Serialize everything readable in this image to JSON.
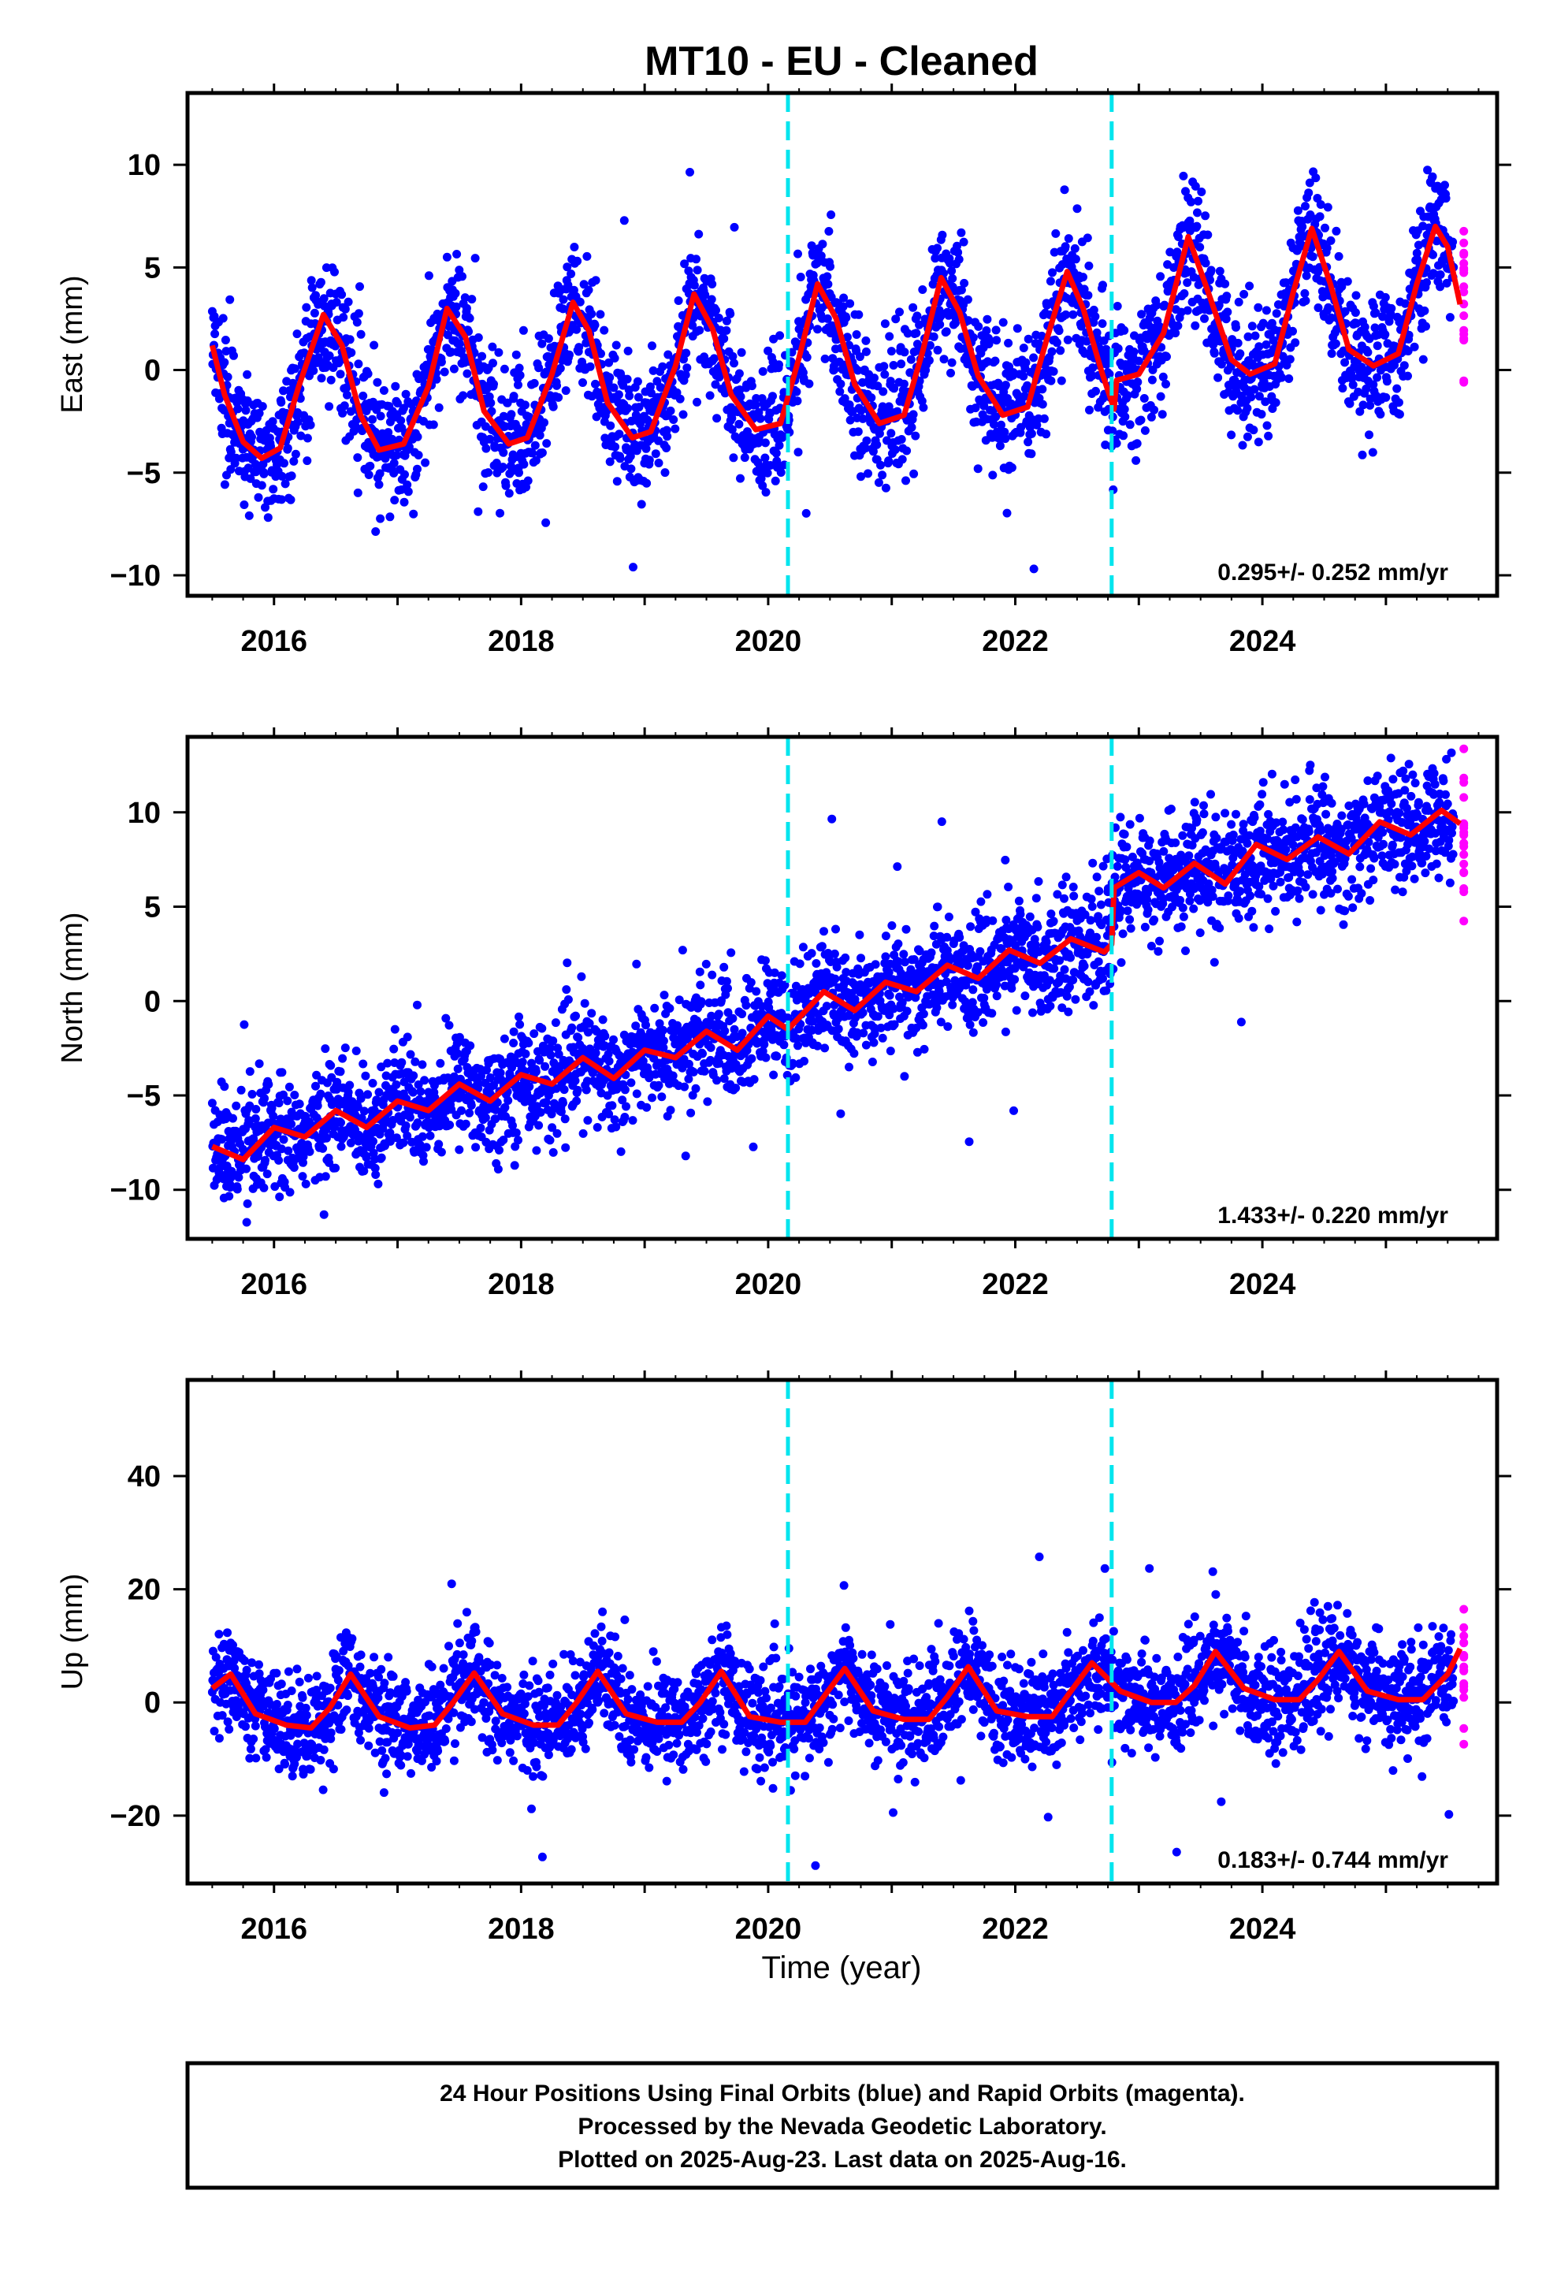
{
  "title": "MT10  - EU - Cleaned",
  "x_axis_label": "Time (year)",
  "colors": {
    "final_orbits": "#0000ff",
    "rapid_orbits": "#ff00ff",
    "model_fit": "#ff0000",
    "breaks": "#00e5ee",
    "frame": "#000000"
  },
  "footer": {
    "line1": "24 Hour Positions Using Final Orbits (blue) and Rapid Orbits (magenta).",
    "line2": "Processed by the Nevada Geodetic Laboratory.",
    "line3": "Plotted on 2025-Aug-23. Last data on 2025-Aug-16."
  },
  "chart_data": [
    {
      "type": "scatter",
      "ylabel": "East (mm)",
      "xlim": [
        2015.3,
        2025.9
      ],
      "ylim": [
        -11,
        13.5
      ],
      "xticks": [
        "2016",
        "2018",
        "2020",
        "2022",
        "2024"
      ],
      "yticks": [
        "−10",
        "−5",
        "0",
        "5",
        "10"
      ],
      "rate_label": "0.295+/- 0.252 mm/yr",
      "series": [
        {
          "name": "Final Orbits",
          "x_range": [
            2015.5,
            2025.55
          ]
        },
        {
          "name": "Rapid Orbits",
          "x_range": [
            2025.55,
            2025.62
          ]
        },
        {
          "name": "Model fit",
          "knots": [
            [
              2015.5,
              1.2
            ],
            [
              2015.6,
              -1.2
            ],
            [
              2015.75,
              -3.5
            ],
            [
              2015.9,
              -4.3
            ],
            [
              2016.05,
              -3.8
            ],
            [
              2016.2,
              -0.8
            ],
            [
              2016.4,
              2.7
            ],
            [
              2016.55,
              1.2
            ],
            [
              2016.7,
              -2.2
            ],
            [
              2016.85,
              -3.9
            ],
            [
              2017.05,
              -3.6
            ],
            [
              2017.25,
              -0.8
            ],
            [
              2017.4,
              3.0
            ],
            [
              2017.55,
              1.6
            ],
            [
              2017.7,
              -2.0
            ],
            [
              2017.9,
              -3.6
            ],
            [
              2018.05,
              -3.3
            ],
            [
              2018.25,
              -0.2
            ],
            [
              2018.42,
              3.3
            ],
            [
              2018.55,
              1.9
            ],
            [
              2018.7,
              -1.6
            ],
            [
              2018.9,
              -3.3
            ],
            [
              2019.05,
              -3.0
            ],
            [
              2019.25,
              0.2
            ],
            [
              2019.4,
              3.7
            ],
            [
              2019.55,
              2.0
            ],
            [
              2019.7,
              -1.2
            ],
            [
              2019.9,
              -2.9
            ],
            [
              2020.1,
              -2.6
            ],
            [
              2020.25,
              0.6
            ],
            [
              2020.4,
              4.2
            ],
            [
              2020.55,
              2.5
            ],
            [
              2020.7,
              -0.7
            ],
            [
              2020.9,
              -2.6
            ],
            [
              2021.1,
              -2.2
            ],
            [
              2021.25,
              0.9
            ],
            [
              2021.4,
              4.5
            ],
            [
              2021.55,
              2.8
            ],
            [
              2021.7,
              -0.3
            ],
            [
              2021.9,
              -2.2
            ],
            [
              2022.1,
              -1.8
            ],
            [
              2022.25,
              1.4
            ],
            [
              2022.42,
              4.8
            ],
            [
              2022.55,
              3.0
            ],
            [
              2022.7,
              -0.1
            ],
            [
              2022.8,
              -1.9
            ],
            [
              2022.82,
              -0.5
            ],
            [
              2023.0,
              -0.2
            ],
            [
              2023.2,
              1.8
            ],
            [
              2023.4,
              6.5
            ],
            [
              2023.55,
              4.0
            ],
            [
              2023.75,
              0.5
            ],
            [
              2023.9,
              -0.2
            ],
            [
              2024.1,
              0.3
            ],
            [
              2024.25,
              3.8
            ],
            [
              2024.4,
              6.9
            ],
            [
              2024.55,
              4.2
            ],
            [
              2024.7,
              1.0
            ],
            [
              2024.9,
              0.2
            ],
            [
              2025.1,
              0.8
            ],
            [
              2025.25,
              4.2
            ],
            [
              2025.4,
              7.0
            ],
            [
              2025.5,
              6.0
            ],
            [
              2025.6,
              3.2
            ]
          ]
        }
      ],
      "breaks_x": [
        2020.16,
        2022.78
      ]
    },
    {
      "type": "scatter",
      "ylabel": "North (mm)",
      "xlim": [
        2015.3,
        2025.9
      ],
      "ylim": [
        -12.6,
        14
      ],
      "xticks": [
        "2016",
        "2018",
        "2020",
        "2022",
        "2024"
      ],
      "yticks": [
        "−10",
        "−5",
        "0",
        "5",
        "10"
      ],
      "rate_label": "1.433+/- 0.220 mm/yr",
      "series": [
        {
          "name": "Final Orbits",
          "x_range": [
            2015.5,
            2025.55
          ]
        },
        {
          "name": "Rapid Orbits",
          "x_range": [
            2025.55,
            2025.62
          ]
        },
        {
          "name": "Model fit",
          "knots": [
            [
              2015.5,
              -7.7
            ],
            [
              2015.75,
              -8.4
            ],
            [
              2016.0,
              -6.7
            ],
            [
              2016.25,
              -7.2
            ],
            [
              2016.5,
              -5.8
            ],
            [
              2016.75,
              -6.7
            ],
            [
              2017.0,
              -5.3
            ],
            [
              2017.25,
              -5.8
            ],
            [
              2017.5,
              -4.4
            ],
            [
              2017.75,
              -5.3
            ],
            [
              2018.0,
              -3.9
            ],
            [
              2018.25,
              -4.4
            ],
            [
              2018.5,
              -3.0
            ],
            [
              2018.75,
              -4.1
            ],
            [
              2019.0,
              -2.6
            ],
            [
              2019.25,
              -3.0
            ],
            [
              2019.5,
              -1.6
            ],
            [
              2019.75,
              -2.6
            ],
            [
              2020.0,
              -0.8
            ],
            [
              2020.16,
              -1.5
            ],
            [
              2020.45,
              0.5
            ],
            [
              2020.7,
              -0.5
            ],
            [
              2020.95,
              1.0
            ],
            [
              2021.2,
              0.5
            ],
            [
              2021.45,
              1.9
            ],
            [
              2021.7,
              1.2
            ],
            [
              2021.95,
              2.7
            ],
            [
              2022.2,
              2.0
            ],
            [
              2022.45,
              3.3
            ],
            [
              2022.72,
              2.6
            ],
            [
              2022.78,
              3.0
            ],
            [
              2022.8,
              6.0
            ],
            [
              2023.0,
              6.8
            ],
            [
              2023.2,
              6.0
            ],
            [
              2023.45,
              7.3
            ],
            [
              2023.7,
              6.2
            ],
            [
              2023.95,
              8.3
            ],
            [
              2024.2,
              7.5
            ],
            [
              2024.45,
              8.7
            ],
            [
              2024.7,
              7.8
            ],
            [
              2024.95,
              9.5
            ],
            [
              2025.2,
              8.8
            ],
            [
              2025.45,
              10.1
            ],
            [
              2025.6,
              9.4
            ]
          ]
        }
      ],
      "breaks_x": [
        2020.16,
        2022.78
      ]
    },
    {
      "type": "scatter",
      "ylabel": "Up (mm)",
      "xlim": [
        2015.3,
        2025.9
      ],
      "ylim": [
        -32,
        57
      ],
      "xticks": [
        "2016",
        "2018",
        "2020",
        "2022",
        "2024"
      ],
      "yticks": [
        "−20",
        "0",
        "20",
        "40"
      ],
      "rate_label": "0.183+/- 0.744 mm/yr",
      "series": [
        {
          "name": "Final Orbits",
          "x_range": [
            2015.5,
            2025.55
          ]
        },
        {
          "name": "Rapid Orbits",
          "x_range": [
            2025.55,
            2025.62
          ]
        },
        {
          "name": "Model fit",
          "knots": [
            [
              2015.5,
              2.5
            ],
            [
              2015.65,
              5.0
            ],
            [
              2015.85,
              -2.0
            ],
            [
              2016.1,
              -4.0
            ],
            [
              2016.3,
              -4.5
            ],
            [
              2016.45,
              -1.0
            ],
            [
              2016.62,
              5.0
            ],
            [
              2016.85,
              -2.5
            ],
            [
              2017.1,
              -4.5
            ],
            [
              2017.3,
              -4.0
            ],
            [
              2017.45,
              0.0
            ],
            [
              2017.62,
              5.2
            ],
            [
              2017.85,
              -2.0
            ],
            [
              2018.1,
              -4.0
            ],
            [
              2018.3,
              -4.0
            ],
            [
              2018.45,
              0.0
            ],
            [
              2018.62,
              5.5
            ],
            [
              2018.85,
              -2.0
            ],
            [
              2019.1,
              -3.5
            ],
            [
              2019.3,
              -3.5
            ],
            [
              2019.45,
              0.0
            ],
            [
              2019.62,
              5.5
            ],
            [
              2019.85,
              -2.5
            ],
            [
              2020.1,
              -3.5
            ],
            [
              2020.3,
              -3.5
            ],
            [
              2020.45,
              1.0
            ],
            [
              2020.62,
              6.0
            ],
            [
              2020.85,
              -1.5
            ],
            [
              2021.1,
              -3.0
            ],
            [
              2021.3,
              -3.0
            ],
            [
              2021.45,
              1.0
            ],
            [
              2021.62,
              6.3
            ],
            [
              2021.85,
              -1.5
            ],
            [
              2022.1,
              -2.5
            ],
            [
              2022.3,
              -2.5
            ],
            [
              2022.45,
              2.0
            ],
            [
              2022.62,
              7.0
            ],
            [
              2022.85,
              2.0
            ],
            [
              2023.1,
              0.0
            ],
            [
              2023.3,
              0.0
            ],
            [
              2023.45,
              3.0
            ],
            [
              2023.62,
              9.0
            ],
            [
              2023.85,
              2.5
            ],
            [
              2024.1,
              0.5
            ],
            [
              2024.3,
              0.5
            ],
            [
              2024.45,
              4.0
            ],
            [
              2024.62,
              9.0
            ],
            [
              2024.85,
              2.0
            ],
            [
              2025.1,
              0.5
            ],
            [
              2025.3,
              0.5
            ],
            [
              2025.5,
              5.0
            ],
            [
              2025.6,
              9.5
            ]
          ]
        }
      ],
      "breaks_x": [
        2020.16,
        2022.78
      ]
    }
  ]
}
